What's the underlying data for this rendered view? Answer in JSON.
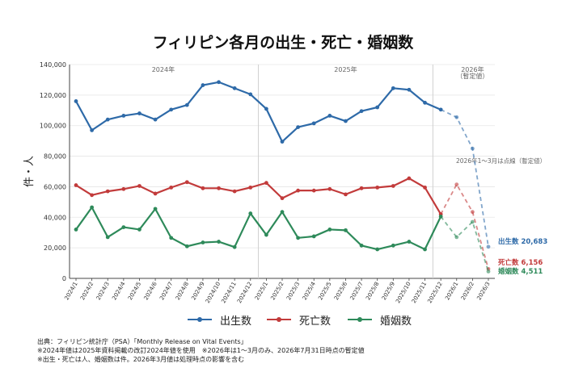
{
  "chart_data": {
    "type": "line",
    "title": "フィリピン各月の出生・死亡・婚姻数",
    "ylabel": "件・人",
    "ylim": [
      0,
      140000
    ],
    "yticks": [
      "0",
      "20,000",
      "40,000",
      "60,000",
      "80,000",
      "100,000",
      "120,000",
      "140,000"
    ],
    "grid": true,
    "legend_position": "bottom",
    "categories": [
      "2024/1",
      "2024/2",
      "2024/3",
      "2024/4",
      "2024/5",
      "2024/6",
      "2024/7",
      "2024/8",
      "2024/9",
      "2024/10",
      "2024/11",
      "2024/12",
      "2025/1",
      "2025/2",
      "2025/3",
      "2025/4",
      "2025/5",
      "2025/6",
      "2025/7",
      "2025/8",
      "2025/9",
      "2025/10",
      "2025/11",
      "2025/12",
      "2026/1",
      "2026/2",
      "2026/3"
    ],
    "periods": [
      {
        "label": "2024年",
        "sublabel": ""
      },
      {
        "label": "2025年",
        "sublabel": ""
      },
      {
        "label": "2026年",
        "sublabel": "（暫定値）"
      }
    ],
    "provisional_start_index": 23,
    "annotation": "2026年1～3月は点線（暫定値）",
    "series": [
      {
        "name": "出生数",
        "color": "#2e6aa8",
        "end_label": "出生数  20,683",
        "values": [
          116000,
          97000,
          104000,
          106500,
          108000,
          104000,
          110500,
          113500,
          126500,
          128500,
          124500,
          120500,
          111000,
          89500,
          99000,
          101500,
          106500,
          103000,
          109500,
          112000,
          124500,
          123500,
          115000,
          110500,
          105500,
          85000,
          20683
        ]
      },
      {
        "name": "死亡数",
        "color": "#c23b3b",
        "end_label": "死亡数  6,156",
        "values": [
          61000,
          54500,
          57000,
          58500,
          60500,
          55500,
          59500,
          63000,
          59000,
          59000,
          57000,
          59500,
          62500,
          52500,
          57500,
          57500,
          58500,
          55000,
          59000,
          59500,
          60500,
          65500,
          59500,
          42000,
          61500,
          43500,
          6156
        ]
      },
      {
        "name": "婚姻数",
        "color": "#2e8a5a",
        "end_label": "婚姻数  4,511",
        "values": [
          32000,
          46500,
          27000,
          33500,
          32000,
          45500,
          26500,
          21000,
          23500,
          24000,
          20500,
          42500,
          28500,
          43500,
          26500,
          27500,
          32000,
          31500,
          21500,
          19000,
          21500,
          24000,
          19000,
          40500,
          27000,
          37000,
          4511
        ]
      }
    ]
  },
  "footnotes": [
    "出典：フィリピン統計庁（PSA）「Monthly Release on Vital Events」",
    "※2024年値は2025年資料掲載の改訂2024年値を使用　※2026年は1～3月のみ、2026年7月31日時点の暫定値",
    "※出生・死亡は人、婚姻数は件。2026年3月値は処理時点の影響を含む"
  ]
}
